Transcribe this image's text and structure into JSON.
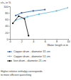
{
  "chart_data": {
    "type": "line",
    "y_label": "ε/ε₀ in %",
    "x_label": "Water length in m",
    "caption": [
      "Higher relative enthalpy corresponds",
      "to more efficient quenching"
    ],
    "xlim": [
      0,
      10
    ],
    "xticks": [
      0,
      2,
      4,
      6,
      8,
      10
    ],
    "ylim": [
      0,
      100
    ],
    "yticks": [
      0,
      20,
      40,
      60,
      80,
      100
    ],
    "grid": false,
    "legend": "bottom",
    "series": [
      {
        "name": "Copper drum - diameter 31 cm",
        "color": "#1f5fa8",
        "marker": "circle",
        "x": [
          1,
          2,
          4,
          6
        ],
        "values": [
          72,
          80,
          86,
          90
        ]
      },
      {
        "name": "Copper drum - diameter 51 cm",
        "color": "#5bb5e8",
        "marker": "circle",
        "x": [
          1,
          3,
          5,
          8,
          10
        ],
        "values": [
          58,
          68,
          76,
          86,
          96
        ]
      },
      {
        "name": "Iron drum - diameter 21 cm",
        "color": "#000000",
        "marker": "circle",
        "x": [
          0.5,
          1.5,
          2.5,
          3.2
        ],
        "values": [
          48,
          70,
          62,
          10
        ]
      }
    ]
  }
}
